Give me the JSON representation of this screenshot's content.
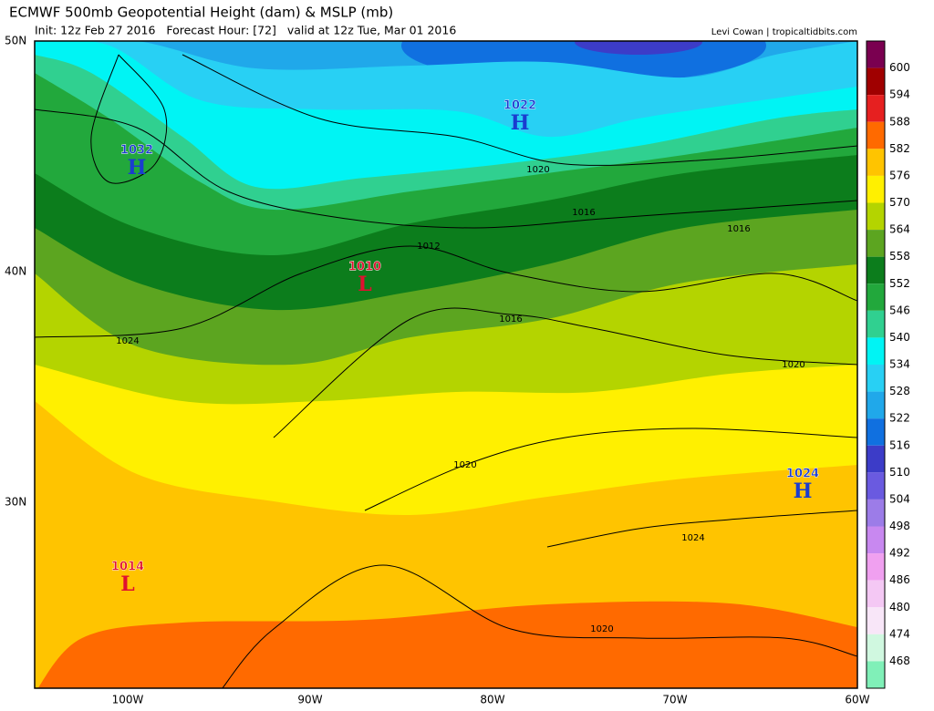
{
  "header": {
    "title": "ECMWF 500mb Geopotential Height (dam) & MSLP (mb)",
    "subtitle": "Init: 12z Feb 27 2016   Forecast Hour: [72]   valid at 12z Tue, Mar 01 2016",
    "credit": "Levi Cowan | tropicaltidbits.com"
  },
  "axes": {
    "latitude_labels": [
      "50N",
      "40N",
      "30N"
    ],
    "longitude_labels": [
      "100W",
      "90W",
      "80W",
      "70W",
      "60W"
    ]
  },
  "colorbar": {
    "top_color": "#7a0050",
    "levels": [
      {
        "label": "600",
        "color": "#a00000"
      },
      {
        "label": "594",
        "color": "#e62020"
      },
      {
        "label": "588",
        "color": "#ff6a00"
      },
      {
        "label": "582",
        "color": "#ffc400"
      },
      {
        "label": "576",
        "color": "#fff000"
      },
      {
        "label": "570",
        "color": "#b4d400"
      },
      {
        "label": "564",
        "color": "#5ca520"
      },
      {
        "label": "558",
        "color": "#0c7d1c"
      },
      {
        "label": "552",
        "color": "#22a83c"
      },
      {
        "label": "546",
        "color": "#30d090"
      },
      {
        "label": "540",
        "color": "#00f4f4"
      },
      {
        "label": "534",
        "color": "#28d0f4"
      },
      {
        "label": "528",
        "color": "#20a8ea"
      },
      {
        "label": "522",
        "color": "#1070e0"
      },
      {
        "label": "516",
        "color": "#3c3cc8"
      },
      {
        "label": "510",
        "color": "#6a5ae0"
      },
      {
        "label": "504",
        "color": "#9c7ce8"
      },
      {
        "label": "498",
        "color": "#c888f0"
      },
      {
        "label": "492",
        "color": "#f0a0f0"
      },
      {
        "label": "486",
        "color": "#f4c8f4"
      },
      {
        "label": "480",
        "color": "#f8e6f8"
      },
      {
        "label": "474",
        "color": "#d0f8e0"
      },
      {
        "label": "468",
        "color": "#80f0b8"
      }
    ]
  },
  "pressure_centers": [
    {
      "value": "1032",
      "letter": "H",
      "color": "#1a3cd0"
    },
    {
      "value": "1022",
      "letter": "H",
      "color": "#1a3cd0"
    },
    {
      "value": "1010",
      "letter": "L",
      "color": "#e01030"
    },
    {
      "value": "1014",
      "letter": "L",
      "color": "#e01030"
    },
    {
      "value": "1024",
      "letter": "H",
      "color": "#1a3cd0"
    }
  ],
  "isobar_labels": [
    "1020",
    "1016",
    "1016",
    "1012",
    "1016",
    "1024",
    "1020",
    "1020",
    "1024",
    "1020"
  ]
}
